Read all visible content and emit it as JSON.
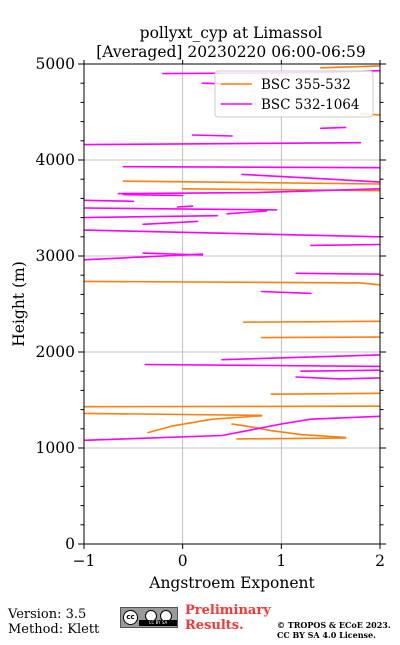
{
  "chart_data": {
    "type": "line",
    "title": "pollyxt_cyp at Limassol",
    "subtitle": "[Averaged] 20230220 06:00-06:59",
    "xlabel": "Angstroem Exponent",
    "ylabel": "Height (m)",
    "xlim": [
      -1,
      2
    ],
    "ylim": [
      0,
      5000
    ],
    "xticks": [
      -1,
      0,
      1,
      2
    ],
    "yticks": [
      0,
      1000,
      2000,
      3000,
      4000,
      5000
    ],
    "grid": true,
    "legend_position": "top-right",
    "series": [
      {
        "name": "BSC 355-532",
        "color": "#ff7f0e",
        "segments": [
          [
            [
              0.55,
              1095
            ],
            [
              1.2,
              1100
            ],
            [
              1.65,
              1105
            ]
          ],
          [
            [
              -0.35,
              1160
            ],
            [
              -0.1,
              1230
            ],
            [
              0.3,
              1300
            ],
            [
              0.8,
              1335
            ]
          ],
          [
            [
              -1.0,
              1360
            ],
            [
              0.8,
              1340
            ]
          ],
          [
            [
              1.65,
              1110
            ],
            [
              1.2,
              1140
            ],
            [
              0.9,
              1180
            ],
            [
              0.75,
              1210
            ],
            [
              0.6,
              1235
            ],
            [
              0.5,
              1250
            ]
          ],
          [
            [
              -1.0,
              1430
            ],
            [
              2.0,
              1435
            ]
          ],
          [
            [
              0.9,
              1560
            ],
            [
              2.0,
              1570
            ]
          ],
          [
            [
              0.8,
              2150
            ],
            [
              2.0,
              2155
            ]
          ],
          [
            [
              0.62,
              2310
            ],
            [
              2.0,
              2320
            ]
          ],
          [
            [
              -1.0,
              2735
            ],
            [
              1.8,
              2720
            ],
            [
              2.0,
              2700
            ]
          ],
          [
            [
              -0.6,
              3780
            ],
            [
              2.0,
              3750
            ]
          ],
          [
            [
              0.0,
              3700
            ],
            [
              2.0,
              3680
            ]
          ],
          [
            [
              1.4,
              4960
            ],
            [
              2.0,
              4980
            ]
          ],
          [
            [
              2.0,
              4470
            ],
            [
              1.8,
              4480
            ]
          ]
        ]
      },
      {
        "name": "BSC 532-1064",
        "color": "#ff00ff",
        "segments": [
          [
            [
              -1.0,
              1080
            ],
            [
              0.4,
              1130
            ],
            [
              0.7,
              1190
            ],
            [
              1.0,
              1250
            ],
            [
              1.3,
              1300
            ],
            [
              2.0,
              1330
            ]
          ],
          [
            [
              1.15,
              1740
            ],
            [
              1.6,
              1720
            ],
            [
              2.0,
              1730
            ]
          ],
          [
            [
              1.2,
              1800
            ],
            [
              2.0,
              1810
            ]
          ],
          [
            [
              -0.38,
              1870
            ],
            [
              2.0,
              1850
            ]
          ],
          [
            [
              0.4,
              1920
            ],
            [
              2.0,
              1970
            ]
          ],
          [
            [
              0.8,
              2630
            ],
            [
              1.3,
              2610
            ]
          ],
          [
            [
              1.15,
              2820
            ],
            [
              2.0,
              2810
            ]
          ],
          [
            [
              -1.0,
              2960
            ],
            [
              0.2,
              3020
            ]
          ],
          [
            [
              -0.4,
              3030
            ],
            [
              0.2,
              3010
            ]
          ],
          [
            [
              1.3,
              3110
            ],
            [
              2.0,
              3120
            ]
          ],
          [
            [
              -1.0,
              3270
            ],
            [
              2.0,
              3200
            ]
          ],
          [
            [
              -0.4,
              3330
            ],
            [
              0.15,
              3360
            ]
          ],
          [
            [
              -1.0,
              3400
            ],
            [
              0.35,
              3420
            ]
          ],
          [
            [
              0.45,
              3440
            ],
            [
              0.85,
              3470
            ]
          ],
          [
            [
              -1.0,
              3500
            ],
            [
              0.95,
              3480
            ]
          ],
          [
            [
              -0.05,
              3510
            ],
            [
              0.1,
              3520
            ]
          ],
          [
            [
              -0.6,
              3640
            ],
            [
              0.0,
              3630
            ]
          ],
          [
            [
              -1.0,
              3580
            ],
            [
              -0.5,
              3570
            ]
          ],
          [
            [
              -0.65,
              3650
            ],
            [
              0.75,
              3660
            ],
            [
              2.0,
              3700
            ]
          ],
          [
            [
              0.6,
              3850
            ],
            [
              1.5,
              3800
            ],
            [
              2.0,
              3770
            ]
          ],
          [
            [
              -0.6,
              3930
            ],
            [
              2.0,
              3920
            ]
          ],
          [
            [
              -1.0,
              4160
            ],
            [
              1.8,
              4180
            ]
          ],
          [
            [
              0.1,
              4260
            ],
            [
              0.5,
              4250
            ]
          ],
          [
            [
              1.4,
              4330
            ],
            [
              1.65,
              4340
            ]
          ],
          [
            [
              -0.2,
              4900
            ],
            [
              1.4,
              4910
            ],
            [
              2.0,
              4930
            ]
          ],
          [
            [
              0.2,
              4800
            ],
            [
              0.5,
              4790
            ]
          ]
        ]
      }
    ]
  },
  "footer": {
    "version": "Version: 3.5",
    "method": "Method: Klett",
    "cc_badge": "CC BY SA",
    "preliminary_line1": "Preliminary",
    "preliminary_line2": "Results.",
    "copyright_line1": "© TROPOS & ECoE 2023.",
    "copyright_line2": "CC BY SA 4.0 License."
  }
}
